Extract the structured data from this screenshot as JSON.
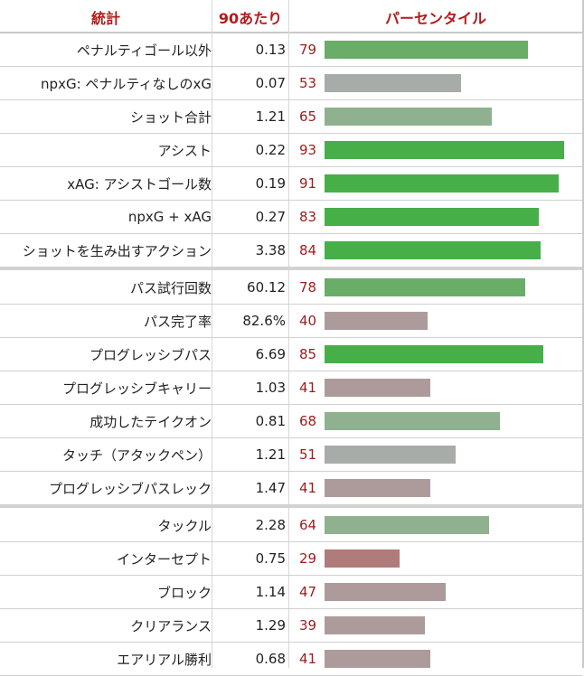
{
  "header": {
    "stat_label": "統計",
    "per90_label": "90あたり",
    "percentile_label": "パーセンタイル"
  },
  "colors": {
    "header_text": "#b31b1b",
    "percentile_text": "#9b1c1c",
    "bar_elite": "#46af48",
    "bar_good": "#69ad69",
    "bar_above_avg": "#8fb18f",
    "bar_average": "#a8aca8",
    "bar_below_avg": "#ad9b9b",
    "bar_low": "#b07b7b"
  },
  "chart_data": {
    "type": "bar",
    "orientation": "horizontal",
    "xlim": [
      0,
      100
    ],
    "groups": [
      {
        "rows": [
          {
            "stat": "ペナルティゴール以外",
            "per90": "0.13",
            "percentile": 79
          },
          {
            "stat": "npxG: ペナルティなしのxG",
            "per90": "0.07",
            "percentile": 53
          },
          {
            "stat": "ショット合計",
            "per90": "1.21",
            "percentile": 65
          },
          {
            "stat": "アシスト",
            "per90": "0.22",
            "percentile": 93
          },
          {
            "stat": "xAG: アシストゴール数",
            "per90": "0.19",
            "percentile": 91
          },
          {
            "stat": "npxG + xAG",
            "per90": "0.27",
            "percentile": 83
          },
          {
            "stat": "ショットを生み出すアクション",
            "per90": "3.38",
            "percentile": 84
          }
        ]
      },
      {
        "rows": [
          {
            "stat": "パス試行回数",
            "per90": "60.12",
            "percentile": 78
          },
          {
            "stat": "パス完了率",
            "per90": "82.6%",
            "percentile": 40
          },
          {
            "stat": "プログレッシブパス",
            "per90": "6.69",
            "percentile": 85
          },
          {
            "stat": "プログレッシブキャリー",
            "per90": "1.03",
            "percentile": 41
          },
          {
            "stat": "成功したテイクオン",
            "per90": "0.81",
            "percentile": 68
          },
          {
            "stat": "タッチ（アタックペン）",
            "per90": "1.21",
            "percentile": 51
          },
          {
            "stat": "プログレッシブパスレック",
            "per90": "1.47",
            "percentile": 41
          }
        ]
      },
      {
        "rows": [
          {
            "stat": "タックル",
            "per90": "2.28",
            "percentile": 64
          },
          {
            "stat": "インターセプト",
            "per90": "0.75",
            "percentile": 29
          },
          {
            "stat": "ブロック",
            "per90": "1.14",
            "percentile": 47
          },
          {
            "stat": "クリアランス",
            "per90": "1.29",
            "percentile": 39
          },
          {
            "stat": "エアリアル勝利",
            "per90": "0.68",
            "percentile": 41
          }
        ]
      }
    ]
  }
}
